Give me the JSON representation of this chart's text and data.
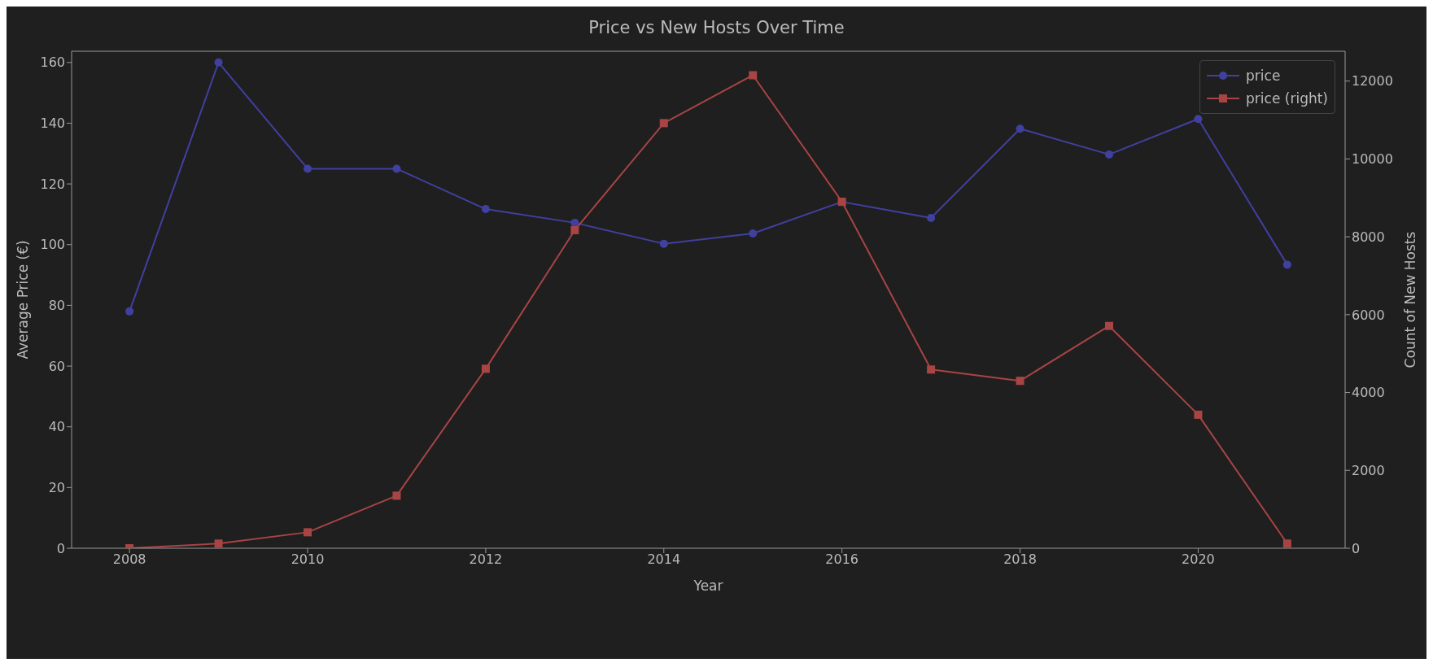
{
  "chart_data": {
    "type": "line",
    "title": "Price vs New Hosts Over Time",
    "xlabel": "Year",
    "ylabel": "Average Price (€)",
    "y2label": "Count of New Hosts",
    "x": [
      2008,
      2009,
      2010,
      2011,
      2012,
      2013,
      2014,
      2015,
      2016,
      2017,
      2018,
      2019,
      2020,
      2021
    ],
    "series": [
      {
        "name": "price",
        "color": "#4040a0",
        "marker": "circle",
        "values": [
          78,
          160,
          125,
          125,
          111.7,
          107.2,
          100.3,
          103.7,
          114.1,
          108.8,
          138.2,
          129.7,
          141.4,
          93.4
        ]
      },
      {
        "name": "price (right)",
        "color": "#a84444",
        "marker": "square",
        "axis": "y2",
        "values": [
          0,
          120,
          410,
          1350,
          4610,
          8170,
          10920,
          12150,
          8900,
          4590,
          4300,
          5710,
          3430,
          120
        ]
      }
    ],
    "xlim": [
      2007.35,
      2021.65
    ],
    "xticks": [
      2008,
      2010,
      2012,
      2014,
      2016,
      2018,
      2020
    ],
    "ylim": [
      0,
      163.7
    ],
    "yticks": [
      0,
      20,
      40,
      60,
      80,
      100,
      120,
      140,
      160
    ],
    "y2lim": [
      0,
      12766
    ],
    "y2ticks": [
      0,
      2000,
      4000,
      6000,
      8000,
      10000,
      12000
    ],
    "legend": "top right",
    "grid": false
  }
}
